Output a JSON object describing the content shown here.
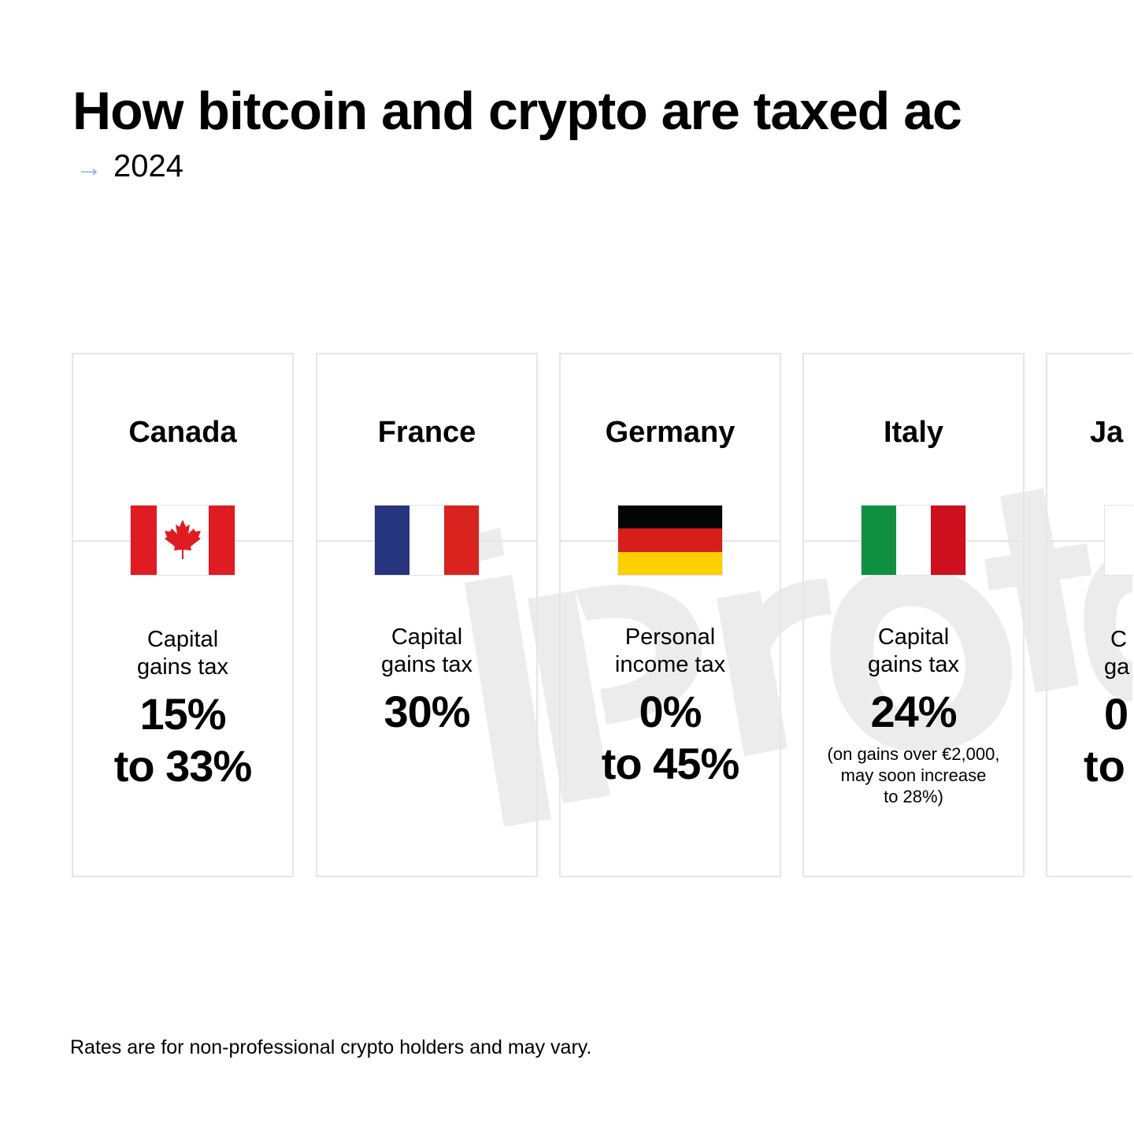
{
  "title": "How bitcoin and crypto are taxed ac",
  "subtitle": {
    "arrow_icon": "arrow-right-icon",
    "year": "2024"
  },
  "watermark": "iProto",
  "colors": {
    "arrow": "#7aaef5",
    "card_border": "#e6e6e6",
    "watermark": "#ececec"
  },
  "cards": [
    {
      "country": "Canada",
      "flag": "canada-flag",
      "desc": [
        "Capital",
        "gains tax"
      ],
      "rate": [
        "15%",
        "to 33%"
      ]
    },
    {
      "country": "France",
      "flag": "france-flag",
      "desc": [
        "Capital",
        "gains tax"
      ],
      "rate": [
        "30%"
      ]
    },
    {
      "country": "Germany",
      "flag": "germany-flag",
      "desc": [
        "Personal",
        "income tax"
      ],
      "rate": [
        "0%",
        "to 45%"
      ]
    },
    {
      "country": "Italy",
      "flag": "italy-flag",
      "desc": [
        "Capital",
        "gains tax"
      ],
      "rate": [
        "24%"
      ],
      "note": [
        "(on gains over €2,000,",
        "may soon increase",
        "to 28%)"
      ]
    },
    {
      "country": "Ja",
      "desc": [
        "C",
        "ga"
      ],
      "rate": [
        "0",
        "to"
      ]
    }
  ],
  "footnote": "Rates are for non-professional crypto holders and may vary."
}
